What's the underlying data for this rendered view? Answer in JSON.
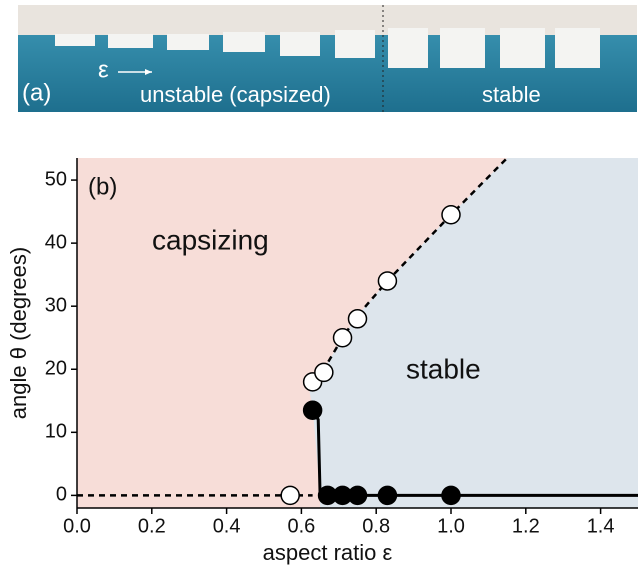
{
  "photo": {
    "label": "(a)",
    "symbol": "ε",
    "left_caption": "unstable (capsized)",
    "right_caption": "stable"
  },
  "chart_data": {
    "type": "scatter",
    "panel_label": "(b)",
    "xlabel": "aspect ratio ε",
    "ylabel": "angle θ  (degrees)",
    "annotations": [
      "capsizing",
      "stable"
    ],
    "xlim": [
      0,
      1.5
    ],
    "ylim": [
      -2,
      53.5
    ],
    "xticks": [
      {
        "value": 0,
        "label": "0.0"
      },
      0.2,
      0.4,
      0.6,
      0.8,
      {
        "value": 1,
        "label": "1.0"
      },
      1.2,
      1.4
    ],
    "yticks": [
      0,
      10,
      20,
      30,
      40,
      50
    ],
    "region_colors": [
      "#f7ddd8",
      "#dde5ec"
    ],
    "series": [
      {
        "marker": "open",
        "color": "#ffffff",
        "x": [
          0.57,
          0.63,
          0.66,
          0.71,
          0.75,
          0.83,
          1.0
        ],
        "values": [
          0,
          18,
          19.5,
          25,
          28,
          34,
          44.5
        ]
      },
      {
        "marker": "filled",
        "color": "#000000",
        "x": [
          0.63,
          0.67,
          0.71,
          0.75,
          0.83,
          1.0
        ],
        "values": [
          13.5,
          0,
          0,
          0,
          0,
          0
        ]
      }
    ],
    "lines": [
      {
        "style": "dashed",
        "x": [
          0,
          0.63
        ],
        "values": [
          0,
          0
        ]
      },
      {
        "style": "dashed",
        "x": [
          0.62,
          0.66,
          0.71,
          0.75,
          0.83,
          1.0,
          1.15
        ],
        "values": [
          17,
          20,
          25,
          28.5,
          34,
          44.5,
          53.5
        ]
      },
      {
        "style": "solid",
        "x": [
          0.63,
          0.645,
          0.65,
          0.66,
          1.5
        ],
        "values": [
          14,
          12,
          0,
          0,
          0
        ]
      }
    ]
  }
}
